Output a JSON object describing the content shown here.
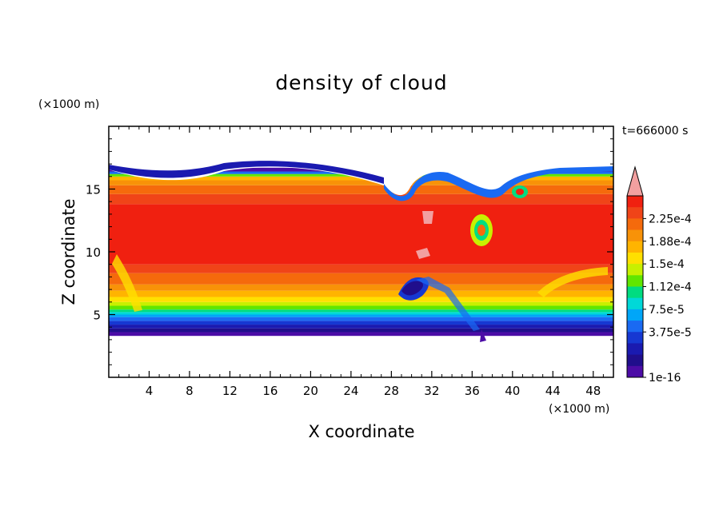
{
  "chart_data": {
    "type": "heatmap",
    "title": "density of cloud",
    "xlabel": "X coordinate",
    "ylabel": "Z coordinate",
    "x_unit": "(×1000 m)",
    "y_unit": "(×1000 m)",
    "time_label": "t=666000 s",
    "xlim": [
      0,
      50
    ],
    "ylim": [
      0,
      20
    ],
    "x_ticks": [
      "4",
      "8",
      "12",
      "16",
      "20",
      "24",
      "28",
      "32",
      "36",
      "40",
      "44",
      "48"
    ],
    "y_ticks": [
      "5",
      "10",
      "15"
    ],
    "colorbar": {
      "labels": [
        "2.25e-4",
        "1.88e-4",
        "1.5e-4",
        "1.12e-4",
        "7.5e-5",
        "3.75e-5",
        "1e-16"
      ],
      "colors": [
        "#f2a0a0",
        "#f02010",
        "#f04418",
        "#f56a0c",
        "#f89208",
        "#ffb400",
        "#ffe000",
        "#c8f000",
        "#60e600",
        "#00dc80",
        "#00d8d8",
        "#00a6f8",
        "#1a6af2",
        "#1638d2",
        "#1a1ab0",
        "#200e8c",
        "#4c0ca6"
      ]
    },
    "bands": [
      {
        "z0": 3.3,
        "z1": 3.6,
        "color": "#4c0ca6"
      },
      {
        "z0": 3.6,
        "z1": 3.9,
        "color": "#200e8c"
      },
      {
        "z0": 3.9,
        "z1": 4.2,
        "color": "#1a1ab0"
      },
      {
        "z0": 4.2,
        "z1": 4.5,
        "color": "#1638d2"
      },
      {
        "z0": 4.5,
        "z1": 4.8,
        "color": "#1a6af2"
      },
      {
        "z0": 4.8,
        "z1": 5.0,
        "color": "#00a6f8"
      },
      {
        "z0": 5.0,
        "z1": 5.2,
        "color": "#00d8d8"
      },
      {
        "z0": 5.2,
        "z1": 5.4,
        "color": "#00dc80"
      },
      {
        "z0": 5.4,
        "z1": 5.7,
        "color": "#60e600"
      },
      {
        "z0": 5.7,
        "z1": 6.0,
        "color": "#c8f000"
      },
      {
        "z0": 6.0,
        "z1": 6.4,
        "color": "#ffe000"
      },
      {
        "z0": 6.4,
        "z1": 6.9,
        "color": "#ffb400"
      },
      {
        "z0": 6.9,
        "z1": 7.4,
        "color": "#f89208"
      },
      {
        "z0": 7.4,
        "z1": 8.3,
        "color": "#f56a0c"
      },
      {
        "z0": 8.3,
        "z1": 9.0,
        "color": "#f04418"
      },
      {
        "z0": 9.0,
        "z1": 13.8,
        "color": "#f02010"
      },
      {
        "z0": 13.8,
        "z1": 14.6,
        "color": "#f04418"
      },
      {
        "z0": 14.6,
        "z1": 15.3,
        "color": "#f56a0c"
      },
      {
        "z0": 15.3,
        "z1": 15.7,
        "color": "#f89208"
      },
      {
        "z0": 15.7,
        "z1": 16.0,
        "color": "#ffb400"
      },
      {
        "z0": 16.0,
        "z1": 16.2,
        "color": "#60e600"
      },
      {
        "z0": 16.2,
        "z1": 16.4,
        "color": "#1a6af2"
      },
      {
        "z0": 16.4,
        "z1": 16.7,
        "color": "#4c0ca6"
      }
    ]
  }
}
